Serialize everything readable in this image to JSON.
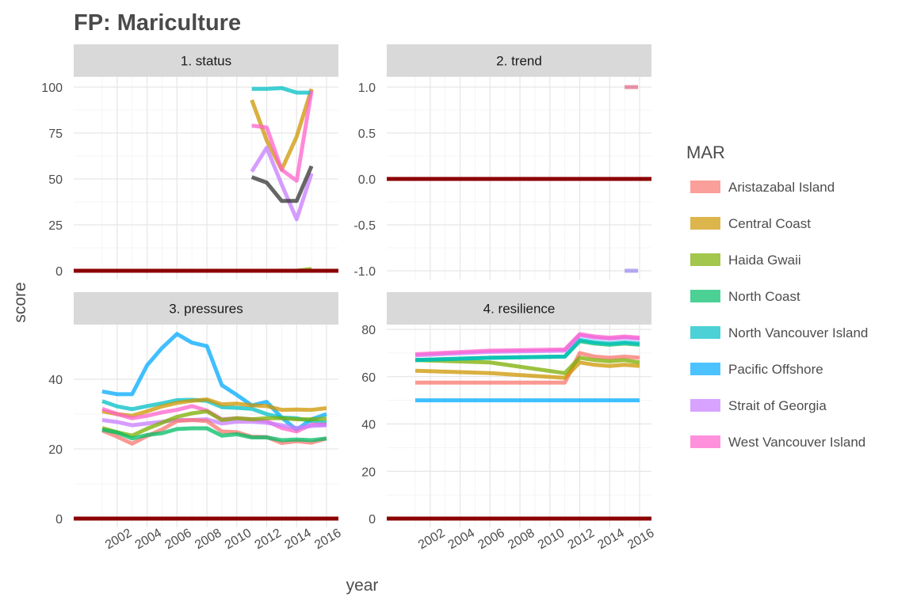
{
  "title": "FP: Mariculture",
  "xlabel": "year",
  "ylabel": "score",
  "legend": {
    "title": "MAR",
    "items": [
      {
        "label": "Aristazabal Island",
        "color": "#F8766D"
      },
      {
        "label": "Central Coast",
        "color": "#CD9600"
      },
      {
        "label": "Haida Gwaii",
        "color": "#7CAE00"
      },
      {
        "label": "North Coast",
        "color": "#00BE67"
      },
      {
        "label": "North Vancouver Island",
        "color": "#00BFC4"
      },
      {
        "label": "Pacific Offshore",
        "color": "#00A9FF"
      },
      {
        "label": "Strait of Georgia",
        "color": "#C77CFF"
      },
      {
        "label": "West Vancouver Island",
        "color": "#FF61CC"
      }
    ]
  },
  "chart_data": [
    {
      "type": "line",
      "panel": "1. status",
      "xlim": [
        2001,
        2016
      ],
      "ylim": [
        0,
        100
      ],
      "yticks": [
        0,
        25,
        50,
        75,
        100
      ],
      "ytick_labels": [
        "0",
        "25",
        "50",
        "75",
        "100"
      ],
      "xticks": [
        2002,
        2004,
        2006,
        2008,
        2010,
        2012,
        2014,
        2016
      ],
      "series": [
        {
          "name": "Central Coast",
          "color": "#CD9600",
          "x": [
            2011,
            2012,
            2013,
            2014,
            2015
          ],
          "y": [
            93,
            71,
            55,
            73,
            99
          ]
        },
        {
          "name": "North Vancouver Island",
          "color": "#00BFC4",
          "x": [
            2011,
            2012,
            2013,
            2014,
            2015
          ],
          "y": [
            99,
            99,
            99.5,
            97,
            97
          ]
        },
        {
          "name": "West Vancouver Island",
          "color": "#FF61CC",
          "x": [
            2011,
            2012,
            2013,
            2014,
            2015
          ],
          "y": [
            79,
            78,
            55,
            49,
            98
          ]
        },
        {
          "name": "Strait of Georgia",
          "color": "#C77CFF",
          "x": [
            2011,
            2012,
            2013,
            2014,
            2015
          ],
          "y": [
            54,
            67,
            47,
            28,
            53
          ]
        },
        {
          "name": "",
          "color": "#333333",
          "x": [
            2011,
            2012,
            2013,
            2014,
            2015
          ],
          "y": [
            51,
            48,
            38,
            38,
            57
          ]
        },
        {
          "name": "Haida Gwaii",
          "color": "#7CAE00",
          "x": [
            2011,
            2012,
            2013,
            2014,
            2015
          ],
          "y": [
            0,
            0,
            0,
            0,
            1
          ]
        }
      ],
      "reference_line": {
        "y": 0,
        "color": "#8B0000"
      }
    },
    {
      "type": "line",
      "panel": "2. trend",
      "xlim": [
        2001,
        2016
      ],
      "ylim": [
        -1,
        1
      ],
      "yticks": [
        -1,
        -0.5,
        0,
        0.5,
        1
      ],
      "ytick_labels": [
        "-1.0",
        "-0.5",
        "0.0",
        "0.5",
        "1.0"
      ],
      "xticks": [
        2002,
        2004,
        2006,
        2008,
        2010,
        2012,
        2014,
        2016
      ],
      "series": [
        {
          "name": "",
          "color": "#E06E8A",
          "x": [
            2015,
            2015.9
          ],
          "y": [
            1,
            1
          ]
        },
        {
          "name": "",
          "color": "#9B8CF0",
          "x": [
            2015,
            2015.9
          ],
          "y": [
            -1,
            -1
          ]
        }
      ],
      "reference_line": {
        "y": 0,
        "color": "#8B0000"
      }
    },
    {
      "type": "line",
      "panel": "3. pressures",
      "xlim": [
        2001,
        2016
      ],
      "ylim": [
        0,
        55
      ],
      "yticks": [
        0,
        20,
        40
      ],
      "ytick_labels": [
        "0",
        "20",
        "40"
      ],
      "xticks": [
        2002,
        2004,
        2006,
        2008,
        2010,
        2012,
        2014,
        2016
      ],
      "series": [
        {
          "name": "Pacific Offshore",
          "color": "#00A9FF",
          "x": [
            2001,
            2002,
            2003,
            2004,
            2005,
            2006,
            2007,
            2008,
            2009,
            2010,
            2011,
            2012,
            2013,
            2014,
            2015,
            2016
          ],
          "y": [
            36.5,
            35.7,
            35.7,
            44,
            49,
            53,
            50.5,
            49.5,
            38.3,
            35.5,
            32.5,
            33.5,
            29,
            25.5,
            28.5,
            30
          ]
        },
        {
          "name": "North Vancouver Island",
          "color": "#00BFC4",
          "x": [
            2001,
            2002,
            2003,
            2004,
            2005,
            2006,
            2007,
            2008,
            2009,
            2010,
            2011,
            2012,
            2013,
            2014,
            2015,
            2016
          ],
          "y": [
            33.7,
            32.2,
            31.4,
            32.3,
            33.1,
            34,
            34.1,
            33.8,
            32,
            31.8,
            31.5,
            30,
            29,
            28.8,
            28,
            27.5
          ]
        },
        {
          "name": "Central Coast",
          "color": "#CD9600",
          "x": [
            2001,
            2002,
            2003,
            2004,
            2005,
            2006,
            2007,
            2008,
            2009,
            2010,
            2011,
            2012,
            2013,
            2014,
            2015,
            2016
          ],
          "y": [
            30.8,
            30,
            29.5,
            30.8,
            32.2,
            33.2,
            33.8,
            34.2,
            32.8,
            33,
            32.5,
            32.3,
            31.2,
            31.3,
            31.2,
            31.7
          ]
        },
        {
          "name": "West Vancouver Island",
          "color": "#FF61CC",
          "x": [
            2001,
            2002,
            2003,
            2004,
            2005,
            2006,
            2007,
            2008,
            2009,
            2010,
            2011,
            2012,
            2013,
            2014,
            2015,
            2016
          ],
          "y": [
            31.5,
            30,
            28.8,
            29.5,
            30.5,
            31.2,
            32.3,
            31,
            28.5,
            28.8,
            28.5,
            28,
            26,
            25,
            27,
            27
          ]
        },
        {
          "name": "Strait of Georgia",
          "color": "#C77CFF",
          "x": [
            2001,
            2002,
            2003,
            2004,
            2005,
            2006,
            2007,
            2008,
            2009,
            2010,
            2011,
            2012,
            2013,
            2014,
            2015,
            2016
          ],
          "y": [
            28.3,
            27.7,
            26.8,
            27.3,
            27.8,
            28.3,
            28.3,
            28.5,
            27.3,
            27.8,
            27.8,
            27.5,
            26.8,
            26,
            26.6,
            26.8
          ]
        },
        {
          "name": "Haida Gwaii",
          "color": "#7CAE00",
          "x": [
            2001,
            2002,
            2003,
            2004,
            2005,
            2006,
            2007,
            2008,
            2009,
            2010,
            2011,
            2012,
            2013,
            2014,
            2015,
            2016
          ],
          "y": [
            26,
            24.8,
            23.8,
            25.8,
            27.5,
            29.2,
            30.2,
            30.8,
            28.3,
            28.8,
            28.5,
            28.8,
            28.8,
            28.5,
            28.5,
            28.7
          ]
        },
        {
          "name": "Aristazabal Island",
          "color": "#F8766D",
          "x": [
            2001,
            2002,
            2003,
            2004,
            2005,
            2006,
            2007,
            2008,
            2009,
            2010,
            2011,
            2012,
            2013,
            2014,
            2015,
            2016
          ],
          "y": [
            25.3,
            23.5,
            21.5,
            23.7,
            25.6,
            28,
            28.3,
            28,
            25,
            24.8,
            23.5,
            23.4,
            21.7,
            22.2,
            21.8,
            23
          ]
        },
        {
          "name": "North Coast",
          "color": "#00BE67",
          "x": [
            2001,
            2002,
            2003,
            2004,
            2005,
            2006,
            2007,
            2008,
            2009,
            2010,
            2011,
            2012,
            2013,
            2014,
            2015,
            2016
          ],
          "y": [
            25.5,
            24.7,
            23,
            24,
            24.5,
            25.7,
            25.9,
            25.9,
            23.8,
            24.2,
            23.3,
            23.3,
            22.5,
            22.7,
            22.5,
            23
          ]
        }
      ],
      "reference_line": {
        "y": 0,
        "color": "#8B0000"
      }
    },
    {
      "type": "line",
      "panel": "4. resilience",
      "xlim": [
        2001,
        2016
      ],
      "ylim": [
        0,
        82
      ],
      "yticks": [
        0,
        20,
        40,
        60,
        80
      ],
      "ytick_labels": [
        "0",
        "20",
        "40",
        "60",
        "80"
      ],
      "xticks": [
        2002,
        2004,
        2006,
        2008,
        2010,
        2012,
        2014,
        2016
      ],
      "series": [
        {
          "name": "Pacific Offshore",
          "color": "#00A9FF",
          "x": [
            2001,
            2016
          ],
          "y": [
            50,
            50
          ]
        },
        {
          "name": "Aristazabal Island",
          "color": "#F8766D",
          "x": [
            2001,
            2011,
            2012,
            2013,
            2014,
            2015,
            2016
          ],
          "y": [
            57.5,
            57.5,
            70,
            68.5,
            68,
            68.5,
            68
          ]
        },
        {
          "name": "Central Coast",
          "color": "#CD9600",
          "x": [
            2001,
            2006,
            2011,
            2012,
            2013,
            2014,
            2015,
            2016
          ],
          "y": [
            62.5,
            61.5,
            59.5,
            66,
            65,
            64.5,
            65,
            64.5
          ]
        },
        {
          "name": "Haida Gwaii",
          "color": "#7CAE00",
          "x": [
            2001,
            2006,
            2011,
            2012,
            2013,
            2014,
            2015,
            2016
          ],
          "y": [
            67,
            66,
            61.5,
            68,
            67,
            66.5,
            67,
            66
          ]
        },
        {
          "name": "North Coast",
          "color": "#00BE67",
          "x": [
            2001,
            2006,
            2011,
            2012,
            2013,
            2014,
            2015,
            2016
          ],
          "y": [
            67,
            68,
            68.5,
            75,
            74,
            73.5,
            74,
            73.5
          ]
        },
        {
          "name": "North Vancouver Island",
          "color": "#00BFC4",
          "x": [
            2001,
            2006,
            2011,
            2012,
            2013,
            2014,
            2015,
            2016
          ],
          "y": [
            67,
            68,
            68.5,
            75.5,
            74.5,
            74,
            74.5,
            74
          ]
        },
        {
          "name": "Strait of Georgia",
          "color": "#C77CFF",
          "x": [
            2001,
            2006,
            2011,
            2012,
            2013,
            2014,
            2015,
            2016
          ],
          "y": [
            69,
            70.5,
            71,
            77.5,
            76.5,
            76,
            76.5,
            76
          ]
        },
        {
          "name": "West Vancouver Island",
          "color": "#FF61CC",
          "x": [
            2001,
            2006,
            2011,
            2012,
            2013,
            2014,
            2015,
            2016
          ],
          "y": [
            69.5,
            71,
            71.5,
            78,
            77,
            76.5,
            77,
            76.5
          ]
        }
      ],
      "reference_line": {
        "y": 0,
        "color": "#8B0000"
      }
    }
  ]
}
